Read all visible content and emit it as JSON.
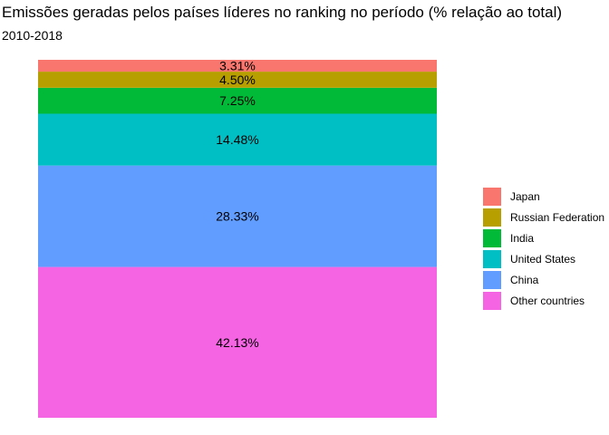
{
  "chart_data": {
    "type": "bar",
    "title": "Emissões geradas pelos países líderes no ranking no período (% relação ao total)",
    "subtitle": "2010-2018",
    "xlabel": "",
    "ylabel": "",
    "ylim": [
      0,
      100
    ],
    "grid": false,
    "legend_position": "right",
    "series": [
      {
        "name": "Other countries",
        "value": 42.13,
        "label": "42.13%",
        "color": "#F564E3"
      },
      {
        "name": "China",
        "value": 28.33,
        "label": "28.33%",
        "color": "#619CFF"
      },
      {
        "name": "United States",
        "value": 14.48,
        "label": "14.48%",
        "color": "#00BFC4"
      },
      {
        "name": "India",
        "value": 7.25,
        "label": "7.25%",
        "color": "#00BA38"
      },
      {
        "name": "Russian Federation",
        "value": 4.5,
        "label": "4.50%",
        "color": "#B79F00"
      },
      {
        "name": "Japan",
        "value": 3.31,
        "label": "3.31%",
        "color": "#F8766D"
      }
    ],
    "legend": [
      {
        "name": "Japan",
        "color": "#F8766D"
      },
      {
        "name": "Russian Federation",
        "color": "#B79F00"
      },
      {
        "name": "India",
        "color": "#00BA38"
      },
      {
        "name": "United States",
        "color": "#00BFC4"
      },
      {
        "name": "China",
        "color": "#619CFF"
      },
      {
        "name": "Other countries",
        "color": "#F564E3"
      }
    ]
  }
}
